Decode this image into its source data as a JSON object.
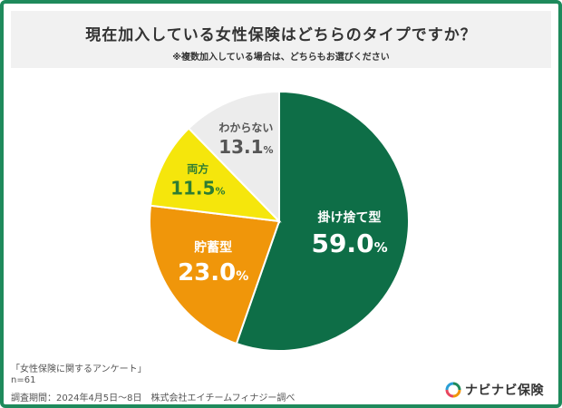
{
  "title": "現在加入している女性保険はどちらのタイプですか？",
  "subtitle": "※複数加入している場合は、どちらもお選びください",
  "chart_data": {
    "type": "pie",
    "title": "現在加入している女性保険はどちらのタイプですか？",
    "slices": [
      {
        "label": "掛け捨て型",
        "value": 59.0,
        "display": "59.0",
        "color": "#0e6e47",
        "text_color": "#ffffff"
      },
      {
        "label": "貯蓄型",
        "value": 23.0,
        "display": "23.0",
        "color": "#f0960a",
        "text_color": "#ffffff"
      },
      {
        "label": "両方",
        "value": 11.5,
        "display": "11.5",
        "color": "#f5e60c",
        "text_color": "#2e7d32"
      },
      {
        "label": "わからない",
        "value": 13.1,
        "display": "13.1",
        "color": "#ececec",
        "text_color": "#555555"
      }
    ],
    "unit": "%"
  },
  "footer": {
    "survey_name": "「女性保険に関するアンケート」",
    "n": "n=61",
    "period": "調査期間：2024年4月5日～8日　株式会社エイチームフィナジー調べ"
  },
  "logo": {
    "text": "ナビナビ保険",
    "icon": "navinavi-logo-icon"
  }
}
